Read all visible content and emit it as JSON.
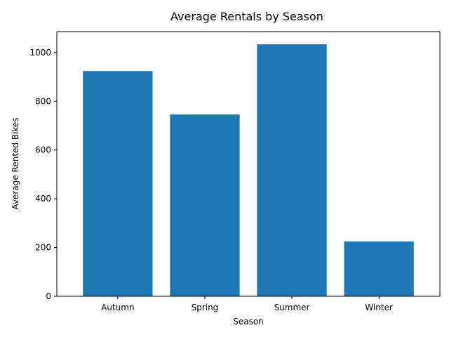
{
  "chart_data": {
    "type": "bar",
    "title": "Average Rentals by Season",
    "xlabel": "Season",
    "ylabel": "Average Rented Bikes",
    "categories": [
      "Autumn",
      "Spring",
      "Summer",
      "Winter"
    ],
    "values": [
      924,
      746,
      1034,
      225
    ],
    "ylim": [
      0,
      1086
    ],
    "yticks": [
      0,
      200,
      400,
      600,
      800,
      1000
    ],
    "bar_color": "#1f77b4",
    "grid": false,
    "legend": "none"
  }
}
